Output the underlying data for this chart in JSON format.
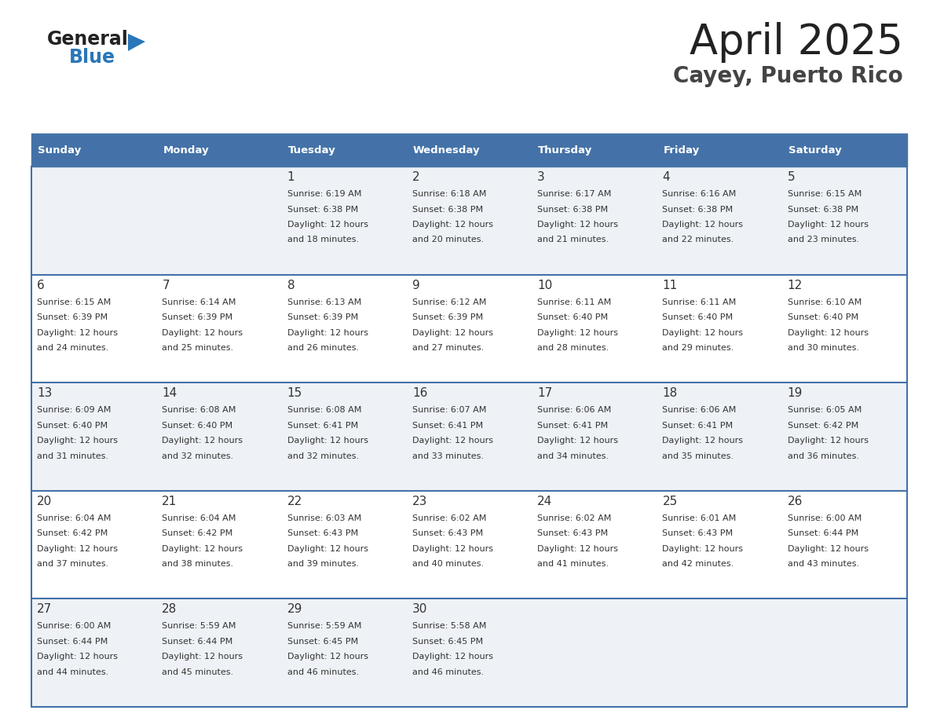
{
  "title": "April 2025",
  "subtitle": "Cayey, Puerto Rico",
  "header_bg": "#4472a8",
  "header_text_color": "#ffffff",
  "cell_bg_odd": "#eef2f7",
  "cell_bg_even": "#ffffff",
  "border_color": "#4472a8",
  "text_color": "#333333",
  "logo_general_color": "#222222",
  "logo_blue_color": "#2977b8",
  "title_color": "#222222",
  "subtitle_color": "#444444",
  "days_of_week": [
    "Sunday",
    "Monday",
    "Tuesday",
    "Wednesday",
    "Thursday",
    "Friday",
    "Saturday"
  ],
  "weeks": [
    [
      {
        "day": "",
        "sunrise": "",
        "sunset": "",
        "daylight1": "",
        "daylight2": ""
      },
      {
        "day": "",
        "sunrise": "",
        "sunset": "",
        "daylight1": "",
        "daylight2": ""
      },
      {
        "day": "1",
        "sunrise": "Sunrise: 6:19 AM",
        "sunset": "Sunset: 6:38 PM",
        "daylight1": "Daylight: 12 hours",
        "daylight2": "and 18 minutes."
      },
      {
        "day": "2",
        "sunrise": "Sunrise: 6:18 AM",
        "sunset": "Sunset: 6:38 PM",
        "daylight1": "Daylight: 12 hours",
        "daylight2": "and 20 minutes."
      },
      {
        "day": "3",
        "sunrise": "Sunrise: 6:17 AM",
        "sunset": "Sunset: 6:38 PM",
        "daylight1": "Daylight: 12 hours",
        "daylight2": "and 21 minutes."
      },
      {
        "day": "4",
        "sunrise": "Sunrise: 6:16 AM",
        "sunset": "Sunset: 6:38 PM",
        "daylight1": "Daylight: 12 hours",
        "daylight2": "and 22 minutes."
      },
      {
        "day": "5",
        "sunrise": "Sunrise: 6:15 AM",
        "sunset": "Sunset: 6:38 PM",
        "daylight1": "Daylight: 12 hours",
        "daylight2": "and 23 minutes."
      }
    ],
    [
      {
        "day": "6",
        "sunrise": "Sunrise: 6:15 AM",
        "sunset": "Sunset: 6:39 PM",
        "daylight1": "Daylight: 12 hours",
        "daylight2": "and 24 minutes."
      },
      {
        "day": "7",
        "sunrise": "Sunrise: 6:14 AM",
        "sunset": "Sunset: 6:39 PM",
        "daylight1": "Daylight: 12 hours",
        "daylight2": "and 25 minutes."
      },
      {
        "day": "8",
        "sunrise": "Sunrise: 6:13 AM",
        "sunset": "Sunset: 6:39 PM",
        "daylight1": "Daylight: 12 hours",
        "daylight2": "and 26 minutes."
      },
      {
        "day": "9",
        "sunrise": "Sunrise: 6:12 AM",
        "sunset": "Sunset: 6:39 PM",
        "daylight1": "Daylight: 12 hours",
        "daylight2": "and 27 minutes."
      },
      {
        "day": "10",
        "sunrise": "Sunrise: 6:11 AM",
        "sunset": "Sunset: 6:40 PM",
        "daylight1": "Daylight: 12 hours",
        "daylight2": "and 28 minutes."
      },
      {
        "day": "11",
        "sunrise": "Sunrise: 6:11 AM",
        "sunset": "Sunset: 6:40 PM",
        "daylight1": "Daylight: 12 hours",
        "daylight2": "and 29 minutes."
      },
      {
        "day": "12",
        "sunrise": "Sunrise: 6:10 AM",
        "sunset": "Sunset: 6:40 PM",
        "daylight1": "Daylight: 12 hours",
        "daylight2": "and 30 minutes."
      }
    ],
    [
      {
        "day": "13",
        "sunrise": "Sunrise: 6:09 AM",
        "sunset": "Sunset: 6:40 PM",
        "daylight1": "Daylight: 12 hours",
        "daylight2": "and 31 minutes."
      },
      {
        "day": "14",
        "sunrise": "Sunrise: 6:08 AM",
        "sunset": "Sunset: 6:40 PM",
        "daylight1": "Daylight: 12 hours",
        "daylight2": "and 32 minutes."
      },
      {
        "day": "15",
        "sunrise": "Sunrise: 6:08 AM",
        "sunset": "Sunset: 6:41 PM",
        "daylight1": "Daylight: 12 hours",
        "daylight2": "and 32 minutes."
      },
      {
        "day": "16",
        "sunrise": "Sunrise: 6:07 AM",
        "sunset": "Sunset: 6:41 PM",
        "daylight1": "Daylight: 12 hours",
        "daylight2": "and 33 minutes."
      },
      {
        "day": "17",
        "sunrise": "Sunrise: 6:06 AM",
        "sunset": "Sunset: 6:41 PM",
        "daylight1": "Daylight: 12 hours",
        "daylight2": "and 34 minutes."
      },
      {
        "day": "18",
        "sunrise": "Sunrise: 6:06 AM",
        "sunset": "Sunset: 6:41 PM",
        "daylight1": "Daylight: 12 hours",
        "daylight2": "and 35 minutes."
      },
      {
        "day": "19",
        "sunrise": "Sunrise: 6:05 AM",
        "sunset": "Sunset: 6:42 PM",
        "daylight1": "Daylight: 12 hours",
        "daylight2": "and 36 minutes."
      }
    ],
    [
      {
        "day": "20",
        "sunrise": "Sunrise: 6:04 AM",
        "sunset": "Sunset: 6:42 PM",
        "daylight1": "Daylight: 12 hours",
        "daylight2": "and 37 minutes."
      },
      {
        "day": "21",
        "sunrise": "Sunrise: 6:04 AM",
        "sunset": "Sunset: 6:42 PM",
        "daylight1": "Daylight: 12 hours",
        "daylight2": "and 38 minutes."
      },
      {
        "day": "22",
        "sunrise": "Sunrise: 6:03 AM",
        "sunset": "Sunset: 6:43 PM",
        "daylight1": "Daylight: 12 hours",
        "daylight2": "and 39 minutes."
      },
      {
        "day": "23",
        "sunrise": "Sunrise: 6:02 AM",
        "sunset": "Sunset: 6:43 PM",
        "daylight1": "Daylight: 12 hours",
        "daylight2": "and 40 minutes."
      },
      {
        "day": "24",
        "sunrise": "Sunrise: 6:02 AM",
        "sunset": "Sunset: 6:43 PM",
        "daylight1": "Daylight: 12 hours",
        "daylight2": "and 41 minutes."
      },
      {
        "day": "25",
        "sunrise": "Sunrise: 6:01 AM",
        "sunset": "Sunset: 6:43 PM",
        "daylight1": "Daylight: 12 hours",
        "daylight2": "and 42 minutes."
      },
      {
        "day": "26",
        "sunrise": "Sunrise: 6:00 AM",
        "sunset": "Sunset: 6:44 PM",
        "daylight1": "Daylight: 12 hours",
        "daylight2": "and 43 minutes."
      }
    ],
    [
      {
        "day": "27",
        "sunrise": "Sunrise: 6:00 AM",
        "sunset": "Sunset: 6:44 PM",
        "daylight1": "Daylight: 12 hours",
        "daylight2": "and 44 minutes."
      },
      {
        "day": "28",
        "sunrise": "Sunrise: 5:59 AM",
        "sunset": "Sunset: 6:44 PM",
        "daylight1": "Daylight: 12 hours",
        "daylight2": "and 45 minutes."
      },
      {
        "day": "29",
        "sunrise": "Sunrise: 5:59 AM",
        "sunset": "Sunset: 6:45 PM",
        "daylight1": "Daylight: 12 hours",
        "daylight2": "and 46 minutes."
      },
      {
        "day": "30",
        "sunrise": "Sunrise: 5:58 AM",
        "sunset": "Sunset: 6:45 PM",
        "daylight1": "Daylight: 12 hours",
        "daylight2": "and 46 minutes."
      },
      {
        "day": "",
        "sunrise": "",
        "sunset": "",
        "daylight1": "",
        "daylight2": ""
      },
      {
        "day": "",
        "sunrise": "",
        "sunset": "",
        "daylight1": "",
        "daylight2": ""
      },
      {
        "day": "",
        "sunrise": "",
        "sunset": "",
        "daylight1": "",
        "daylight2": ""
      }
    ]
  ]
}
